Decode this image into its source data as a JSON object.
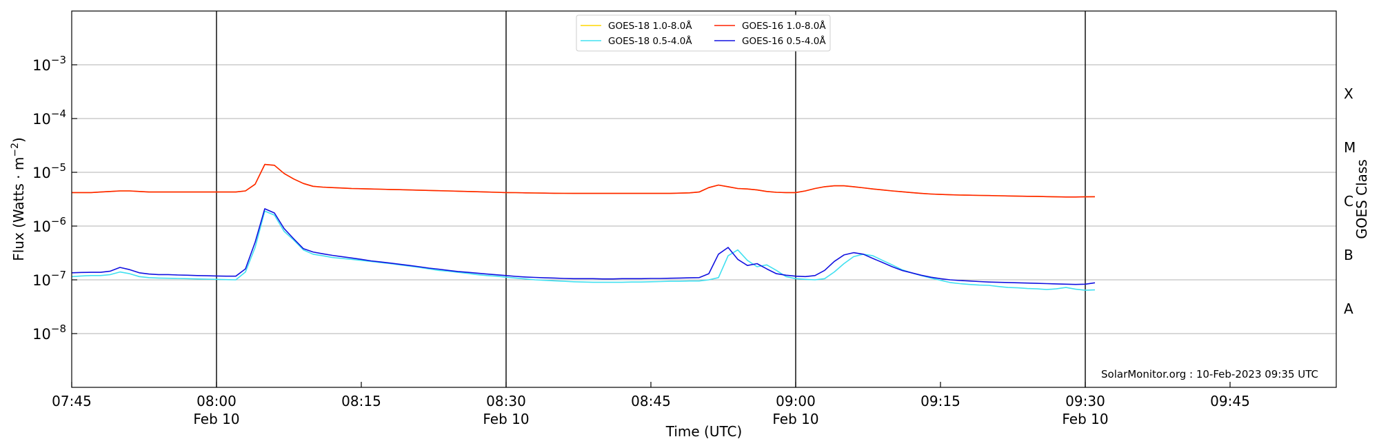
{
  "chart_data": {
    "type": "line",
    "xlabel": "Time (UTC)",
    "ylabel": "Flux (Watts · m",
    "ylabel_sup": "−2",
    "ylabel_close": ")",
    "right_label": "GOES Class",
    "credit": "SolarMonitor.org : 10-Feb-2023 09:35 UTC",
    "y_scale": "log",
    "ylim": [
      1e-09,
      0.01
    ],
    "xlim": [
      "07:45",
      "09:56"
    ],
    "grid": true,
    "legend_position": "top-center",
    "x_ticks": [
      {
        "time": "07:45",
        "label": "07:45",
        "date": ""
      },
      {
        "time": "08:00",
        "label": "08:00",
        "date": "Feb 10"
      },
      {
        "time": "08:15",
        "label": "08:15",
        "date": ""
      },
      {
        "time": "08:30",
        "label": "08:30",
        "date": "Feb 10"
      },
      {
        "time": "08:45",
        "label": "08:45",
        "date": ""
      },
      {
        "time": "09:00",
        "label": "09:00",
        "date": "Feb 10"
      },
      {
        "time": "09:15",
        "label": "09:15",
        "date": ""
      },
      {
        "time": "09:30",
        "label": "09:30",
        "date": "Feb 10"
      },
      {
        "time": "09:45",
        "label": "09:45",
        "date": ""
      }
    ],
    "day_lines": [
      "08:00",
      "08:30",
      "09:00",
      "09:30"
    ],
    "y_ticks": [
      {
        "value": 1e-08,
        "base": "10",
        "exp": "−8"
      },
      {
        "value": 1e-07,
        "base": "10",
        "exp": "−7"
      },
      {
        "value": 1e-06,
        "base": "10",
        "exp": "−6"
      },
      {
        "value": 1e-05,
        "base": "10",
        "exp": "−5"
      },
      {
        "value": 0.0001,
        "base": "10",
        "exp": "−4"
      },
      {
        "value": 0.001,
        "base": "10",
        "exp": "−3"
      }
    ],
    "classes": [
      {
        "label": "A",
        "value": 3e-08
      },
      {
        "label": "B",
        "value": 3e-07
      },
      {
        "label": "C",
        "value": 3e-06
      },
      {
        "label": "M",
        "value": 3e-05
      },
      {
        "label": "X",
        "value": 0.0003
      }
    ],
    "x": [
      "07:45",
      "07:46",
      "07:47",
      "07:48",
      "07:49",
      "07:50",
      "07:51",
      "07:52",
      "07:53",
      "07:54",
      "07:55",
      "07:56",
      "07:57",
      "07:58",
      "07:59",
      "08:00",
      "08:01",
      "08:02",
      "08:03",
      "08:04",
      "08:05",
      "08:06",
      "08:07",
      "08:08",
      "08:09",
      "08:10",
      "08:11",
      "08:12",
      "08:13",
      "08:14",
      "08:15",
      "08:16",
      "08:17",
      "08:18",
      "08:19",
      "08:20",
      "08:21",
      "08:22",
      "08:23",
      "08:24",
      "08:25",
      "08:26",
      "08:27",
      "08:28",
      "08:29",
      "08:30",
      "08:31",
      "08:32",
      "08:33",
      "08:34",
      "08:35",
      "08:36",
      "08:37",
      "08:38",
      "08:39",
      "08:40",
      "08:41",
      "08:42",
      "08:43",
      "08:44",
      "08:45",
      "08:46",
      "08:47",
      "08:48",
      "08:49",
      "08:50",
      "08:51",
      "08:52",
      "08:53",
      "08:54",
      "08:55",
      "08:56",
      "08:57",
      "08:58",
      "08:59",
      "09:00",
      "09:01",
      "09:02",
      "09:03",
      "09:04",
      "09:05",
      "09:06",
      "09:07",
      "09:08",
      "09:09",
      "09:10",
      "09:11",
      "09:12",
      "09:13",
      "09:14",
      "09:15",
      "09:16",
      "09:17",
      "09:18",
      "09:19",
      "09:20",
      "09:21",
      "09:22",
      "09:23",
      "09:24",
      "09:25",
      "09:26",
      "09:27",
      "09:28",
      "09:29",
      "09:30",
      "09:31"
    ],
    "series": [
      {
        "name": "GOES-18 1.0-8.0Å",
        "color": "#ffd700",
        "values": [
          4.2e-06,
          4.2e-06,
          4.2e-06,
          4.3e-06,
          4.4e-06,
          4.5e-06,
          4.5e-06,
          4.4e-06,
          4.3e-06,
          4.3e-06,
          4.3e-06,
          4.3e-06,
          4.3e-06,
          4.3e-06,
          4.3e-06,
          4.3e-06,
          4.3e-06,
          4.3e-06,
          4.5e-06,
          6e-06,
          1.4e-05,
          1.35e-05,
          9.5e-06,
          7.5e-06,
          6.2e-06,
          5.5e-06,
          5.3e-06,
          5.2e-06,
          5.1e-06,
          5e-06,
          4.95e-06,
          4.9e-06,
          4.85e-06,
          4.8e-06,
          4.75e-06,
          4.7e-06,
          4.65e-06,
          4.6e-06,
          4.55e-06,
          4.5e-06,
          4.45e-06,
          4.4e-06,
          4.35e-06,
          4.3e-06,
          4.25e-06,
          4.2e-06,
          4.18e-06,
          4.15e-06,
          4.12e-06,
          4.1e-06,
          4.08e-06,
          4.06e-06,
          4.05e-06,
          4.05e-06,
          4.05e-06,
          4.05e-06,
          4.05e-06,
          4.05e-06,
          4.05e-06,
          4.05e-06,
          4.05e-06,
          4.05e-06,
          4.05e-06,
          4.1e-06,
          4.15e-06,
          4.3e-06,
          5.2e-06,
          5.8e-06,
          5.4e-06,
          5e-06,
          4.9e-06,
          4.7e-06,
          4.4e-06,
          4.25e-06,
          4.2e-06,
          4.2e-06,
          4.5e-06,
          5e-06,
          5.4e-06,
          5.6e-06,
          5.6e-06,
          5.4e-06,
          5.15e-06,
          4.9e-06,
          4.7e-06,
          4.5e-06,
          4.35e-06,
          4.2e-06,
          4.05e-06,
          3.95e-06,
          3.88e-06,
          3.82e-06,
          3.78e-06,
          3.75e-06,
          3.72e-06,
          3.7e-06,
          3.67e-06,
          3.63e-06,
          3.6e-06,
          3.58e-06,
          3.57e-06,
          3.53e-06,
          3.5e-06,
          3.48e-06,
          3.48e-06,
          3.5e-06,
          3.52e-06
        ]
      },
      {
        "name": "GOES-18 0.5-4.0Å",
        "color": "#40e0f0",
        "values": [
          1.15e-07,
          1.18e-07,
          1.2e-07,
          1.2e-07,
          1.25e-07,
          1.4e-07,
          1.3e-07,
          1.15e-07,
          1.1e-07,
          1.08e-07,
          1.07e-07,
          1.06e-07,
          1.05e-07,
          1.04e-07,
          1.03e-07,
          1.02e-07,
          1.01e-07,
          1e-07,
          1.4e-07,
          4e-07,
          1.9e-06,
          1.6e-06,
          8e-07,
          5.5e-07,
          3.6e-07,
          3e-07,
          2.8e-07,
          2.6e-07,
          2.5e-07,
          2.4e-07,
          2.3e-07,
          2.2e-07,
          2.1e-07,
          2e-07,
          1.9e-07,
          1.8e-07,
          1.7e-07,
          1.6e-07,
          1.5e-07,
          1.45e-07,
          1.38e-07,
          1.32e-07,
          1.25e-07,
          1.2e-07,
          1.17e-07,
          1.12e-07,
          1.08e-07,
          1.04e-07,
          1e-07,
          9.8e-08,
          9.6e-08,
          9.4e-08,
          9.2e-08,
          9.1e-08,
          9e-08,
          9e-08,
          9e-08,
          9e-08,
          9.1e-08,
          9.1e-08,
          9.2e-08,
          9.3e-08,
          9.4e-08,
          9.4e-08,
          9.5e-08,
          9.5e-08,
          1e-07,
          1.1e-07,
          2.8e-07,
          3.6e-07,
          2.3e-07,
          1.75e-07,
          1.9e-07,
          1.5e-07,
          1.15e-07,
          1.05e-07,
          1.02e-07,
          1e-07,
          1.05e-07,
          1.4e-07,
          2e-07,
          2.7e-07,
          3e-07,
          2.8e-07,
          2.3e-07,
          1.9e-07,
          1.55e-07,
          1.35e-07,
          1.2e-07,
          1.08e-07,
          9.8e-08,
          8.9e-08,
          8.5e-08,
          8.2e-08,
          8e-08,
          7.9e-08,
          7.5e-08,
          7.2e-08,
          7.1e-08,
          6.9e-08,
          6.8e-08,
          6.6e-08,
          6.8e-08,
          7.2e-08,
          6.7e-08,
          6.4e-08,
          6.5e-08
        ]
      },
      {
        "name": "GOES-16 1.0-8.0Å",
        "color": "#ff2000",
        "values": [
          4.2e-06,
          4.2e-06,
          4.2e-06,
          4.3e-06,
          4.4e-06,
          4.5e-06,
          4.5e-06,
          4.4e-06,
          4.3e-06,
          4.3e-06,
          4.3e-06,
          4.3e-06,
          4.3e-06,
          4.3e-06,
          4.3e-06,
          4.3e-06,
          4.3e-06,
          4.3e-06,
          4.5e-06,
          6e-06,
          1.4e-05,
          1.35e-05,
          9.5e-06,
          7.5e-06,
          6.2e-06,
          5.5e-06,
          5.3e-06,
          5.2e-06,
          5.1e-06,
          5e-06,
          4.95e-06,
          4.9e-06,
          4.85e-06,
          4.8e-06,
          4.75e-06,
          4.7e-06,
          4.65e-06,
          4.6e-06,
          4.55e-06,
          4.5e-06,
          4.45e-06,
          4.4e-06,
          4.35e-06,
          4.3e-06,
          4.25e-06,
          4.2e-06,
          4.18e-06,
          4.15e-06,
          4.12e-06,
          4.1e-06,
          4.08e-06,
          4.06e-06,
          4.05e-06,
          4.05e-06,
          4.05e-06,
          4.05e-06,
          4.05e-06,
          4.05e-06,
          4.05e-06,
          4.05e-06,
          4.05e-06,
          4.05e-06,
          4.05e-06,
          4.1e-06,
          4.15e-06,
          4.3e-06,
          5.2e-06,
          5.8e-06,
          5.4e-06,
          5e-06,
          4.9e-06,
          4.7e-06,
          4.4e-06,
          4.25e-06,
          4.2e-06,
          4.2e-06,
          4.5e-06,
          5e-06,
          5.4e-06,
          5.6e-06,
          5.6e-06,
          5.4e-06,
          5.15e-06,
          4.9e-06,
          4.7e-06,
          4.5e-06,
          4.35e-06,
          4.2e-06,
          4.05e-06,
          3.95e-06,
          3.88e-06,
          3.82e-06,
          3.78e-06,
          3.75e-06,
          3.72e-06,
          3.7e-06,
          3.67e-06,
          3.63e-06,
          3.6e-06,
          3.58e-06,
          3.57e-06,
          3.53e-06,
          3.5e-06,
          3.48e-06,
          3.48e-06,
          3.5e-06,
          3.52e-06
        ]
      },
      {
        "name": "GOES-16 0.5-4.0Å",
        "color": "#1010e0",
        "values": [
          1.35e-07,
          1.37e-07,
          1.38e-07,
          1.38e-07,
          1.45e-07,
          1.7e-07,
          1.55e-07,
          1.35e-07,
          1.28e-07,
          1.25e-07,
          1.25e-07,
          1.23e-07,
          1.22e-07,
          1.2e-07,
          1.19e-07,
          1.18e-07,
          1.17e-07,
          1.17e-07,
          1.6e-07,
          5e-07,
          2.1e-06,
          1.75e-06,
          9e-07,
          5.8e-07,
          3.8e-07,
          3.3e-07,
          3.05e-07,
          2.85e-07,
          2.7e-07,
          2.55e-07,
          2.4e-07,
          2.25e-07,
          2.15e-07,
          2.05e-07,
          1.95e-07,
          1.85e-07,
          1.75e-07,
          1.65e-07,
          1.58e-07,
          1.5e-07,
          1.43e-07,
          1.38e-07,
          1.33e-07,
          1.28e-07,
          1.24e-07,
          1.2e-07,
          1.16e-07,
          1.13e-07,
          1.11e-07,
          1.09e-07,
          1.08e-07,
          1.06e-07,
          1.05e-07,
          1.05e-07,
          1.05e-07,
          1.04e-07,
          1.04e-07,
          1.05e-07,
          1.05e-07,
          1.05e-07,
          1.06e-07,
          1.06e-07,
          1.07e-07,
          1.08e-07,
          1.09e-07,
          1.1e-07,
          1.3e-07,
          3e-07,
          4e-07,
          2.4e-07,
          1.85e-07,
          2e-07,
          1.6e-07,
          1.3e-07,
          1.22e-07,
          1.17e-07,
          1.15e-07,
          1.2e-07,
          1.5e-07,
          2.2e-07,
          2.9e-07,
          3.2e-07,
          3e-07,
          2.5e-07,
          2.1e-07,
          1.75e-07,
          1.5e-07,
          1.35e-07,
          1.22e-07,
          1.12e-07,
          1.05e-07,
          1e-07,
          9.7e-08,
          9.5e-08,
          9.3e-08,
          9.1e-08,
          9e-08,
          8.9e-08,
          8.8e-08,
          8.7e-08,
          8.6e-08,
          8.5e-08,
          8.4e-08,
          8.3e-08,
          8.2e-08,
          8.3e-08,
          8.8e-08
        ]
      }
    ]
  }
}
